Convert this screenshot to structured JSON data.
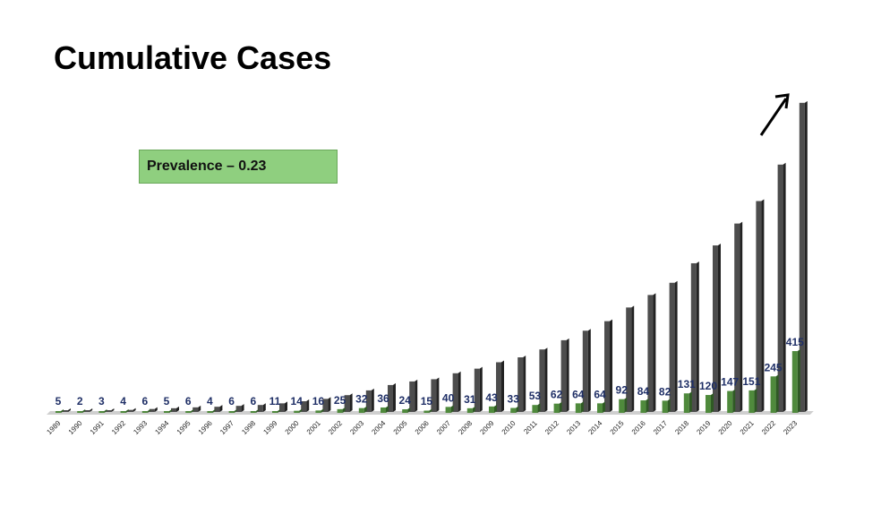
{
  "title": "Cumulative Cases",
  "annotation": {
    "text": "Prevalence – 0.23"
  },
  "colors": {
    "new_cases": "#4f8a3c",
    "new_cases_side": "#2f5a24",
    "cumulative": "#4d4d4d",
    "cumulative_side": "#222222",
    "label": "#1f2f66",
    "floor": "#cfcfcf"
  },
  "chart_data": {
    "type": "bar",
    "categories": [
      "1989",
      "1990",
      "1991",
      "1992",
      "1993",
      "1994",
      "1995",
      "1996",
      "1997",
      "1998",
      "1999",
      "2000",
      "2001",
      "2002",
      "2003",
      "2004",
      "2005",
      "2006",
      "2007",
      "2008",
      "2009",
      "2010",
      "2011",
      "2012",
      "2013",
      "2014",
      "2015",
      "2016",
      "2017",
      "2018",
      "2019",
      "2020",
      "2021",
      "2022",
      "2023"
    ],
    "series": [
      {
        "values": [
          5,
          2,
          3,
          4,
          6,
          5,
          6,
          4,
          6,
          6,
          11,
          14,
          16,
          25,
          32,
          36,
          24,
          15,
          40,
          31,
          43,
          33,
          53,
          62,
          64,
          64,
          92,
          84,
          82,
          131,
          120,
          147,
          151,
          245,
          415
        ]
      },
      {
        "values": [
          5,
          7,
          10,
          14,
          20,
          25,
          31,
          35,
          41,
          47,
          58,
          72,
          88,
          113,
          145,
          181,
          205,
          220,
          260,
          291,
          334,
          367,
          420,
          482,
          546,
          610,
          702,
          786,
          868,
          999,
          1119,
          1266,
          1417,
          1662,
          2077
        ]
      }
    ],
    "data_labels": [
      "5",
      "2",
      "3",
      "4",
      "6",
      "5",
      "6",
      "4",
      "6",
      "6",
      "11",
      "14",
      "16",
      "25",
      "32",
      "36",
      "24",
      "15",
      "40",
      "31",
      "43",
      "33",
      "53",
      "62",
      "64",
      "64",
      "92",
      "84",
      "82",
      "131",
      "120",
      "147",
      "151",
      "245",
      "415"
    ],
    "ylim": [
      0,
      2100
    ],
    "grid": false,
    "legend": "none",
    "trend_arrow": "up-right"
  }
}
